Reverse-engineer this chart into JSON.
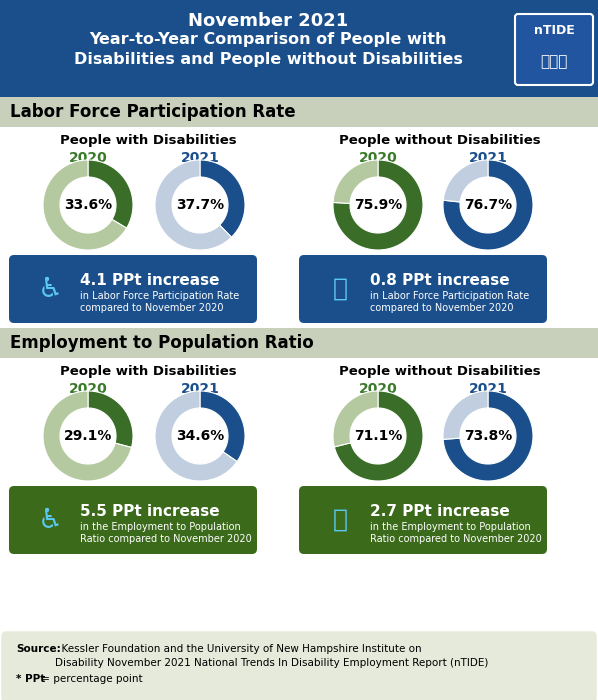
{
  "title_line1": "November 2021",
  "title_line2": "Year-to-Year Comparison of People with",
  "title_line3": "Disabilities and People without Disabilities",
  "title_bg": "#1b4f8c",
  "title_text_color": "#ffffff",
  "section1_label": "Labor Force Participation Rate",
  "section1_bg": "#c8d0bc",
  "section2_label": "Employment to Population Ratio",
  "section2_bg": "#c8d0bc",
  "group1_label": "People with Disabilities",
  "group2_label": "People without Disabilities",
  "year2020_color": "#3a7a2a",
  "year2021_color": "#1b4f8c",
  "year2020_label": "2020",
  "year2021_label": "2021",
  "lfpr_pwd_2020_val": 33.6,
  "lfpr_pwd_2021_val": 37.7,
  "lfpr_pwod_2020_val": 75.9,
  "lfpr_pwod_2021_val": 76.7,
  "lfpr_pwd_change": "4.1 PPt increase",
  "lfpr_pwd_change_sub": "in Labor Force Participation Rate\ncompared to November 2020",
  "lfpr_pwod_change": "0.8 PPt increase",
  "lfpr_pwod_change_sub": "in Labor Force Participation Rate\ncompared to November 2020",
  "lfpr_change_box_color": "#1b4f8c",
  "epop_pwd_2020_val": 29.1,
  "epop_pwd_2021_val": 34.6,
  "epop_pwod_2020_val": 71.1,
  "epop_pwod_2021_val": 73.8,
  "epop_pwd_change": "5.5 PPt increase",
  "epop_pwd_change_sub": "in the Employment to Population\nRatio compared to November 2020",
  "epop_pwod_change": "2.7 PPt increase",
  "epop_pwod_change_sub": "in the Employment to Population\nRatio compared to November 2020",
  "epop_change_box_color": "#3a6a1a",
  "donut_2020_main_color": "#3a6e28",
  "donut_2020_remain_color": "#b5c9a0",
  "donut_2021_main_color": "#1b4f8c",
  "donut_2021_remain_color": "#c0cedf",
  "source_text_bold": "Source:",
  "source_text_normal": "  Kessler Foundation and the University of New Hampshire Institute on",
  "source_text_line2": "Disability November 2021 National Trends In Disability Employment Report (nTIDE)",
  "source_text_line3_bold": "* PPt",
  "source_text_line3_normal": " = percentage point",
  "source_bg": "#e5eada",
  "bg_white": "#ffffff"
}
